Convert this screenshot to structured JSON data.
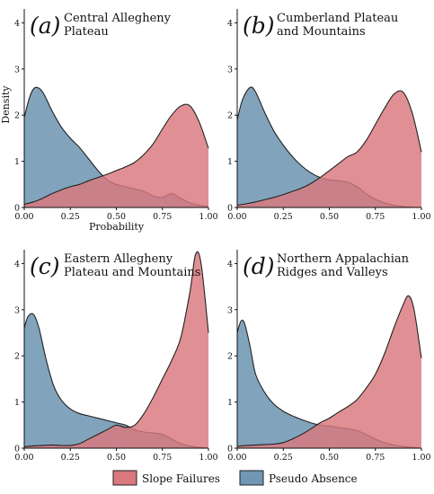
{
  "colors": {
    "slope_failures": "#d9787d",
    "pseudo_absence": "#6f97b3",
    "outline": "#222222",
    "axis": "#111111"
  },
  "legend": {
    "slope_failures_label": "Slope Failures",
    "pseudo_absence_label": "Pseudo Absence"
  },
  "chart_data": [
    {
      "type": "area",
      "panel_letter": "(a)",
      "title_lines": [
        "Central Allegheny",
        "Plateau"
      ],
      "xlabel": "Probability",
      "ylabel": "Density",
      "xlim": [
        0,
        1
      ],
      "ylim": [
        0,
        4.3
      ],
      "x_ticks": [
        "0.00",
        "0.25",
        "0.50",
        "0.75",
        "1.00"
      ],
      "y_ticks": [
        "0",
        "1",
        "2",
        "3",
        "4"
      ],
      "series": [
        {
          "name": "Pseudo Absence",
          "x": [
            0,
            0.03,
            0.06,
            0.1,
            0.15,
            0.2,
            0.25,
            0.3,
            0.35,
            0.4,
            0.45,
            0.5,
            0.55,
            0.6,
            0.65,
            0.7,
            0.75,
            0.8,
            0.85,
            0.9,
            0.95,
            1.0
          ],
          "values": [
            1.95,
            2.4,
            2.6,
            2.5,
            2.1,
            1.75,
            1.5,
            1.3,
            1.05,
            0.8,
            0.6,
            0.5,
            0.45,
            0.4,
            0.35,
            0.25,
            0.22,
            0.3,
            0.2,
            0.1,
            0.05,
            0.02
          ]
        },
        {
          "name": "Slope Failures",
          "x": [
            0,
            0.05,
            0.1,
            0.15,
            0.2,
            0.25,
            0.3,
            0.35,
            0.4,
            0.45,
            0.5,
            0.55,
            0.6,
            0.65,
            0.7,
            0.75,
            0.8,
            0.85,
            0.9,
            0.95,
            1.0
          ],
          "values": [
            0.07,
            0.12,
            0.2,
            0.3,
            0.38,
            0.45,
            0.5,
            0.58,
            0.65,
            0.72,
            0.8,
            0.88,
            0.98,
            1.15,
            1.38,
            1.7,
            2.0,
            2.2,
            2.2,
            1.85,
            1.28
          ]
        }
      ]
    },
    {
      "type": "area",
      "panel_letter": "(b)",
      "title_lines": [
        "Cumberland Plateau",
        "and Mountains"
      ],
      "xlim": [
        0,
        1
      ],
      "ylim": [
        0,
        4.3
      ],
      "x_ticks": [
        "0.00",
        "0.25",
        "0.50",
        "0.75",
        "1.00"
      ],
      "y_ticks": [
        "0",
        "1",
        "2",
        "3",
        "4"
      ],
      "series": [
        {
          "name": "Pseudo Absence",
          "x": [
            0,
            0.03,
            0.07,
            0.1,
            0.15,
            0.2,
            0.25,
            0.3,
            0.35,
            0.4,
            0.45,
            0.5,
            0.55,
            0.6,
            0.65,
            0.7,
            0.75,
            0.8,
            0.85,
            0.9,
            0.95,
            1.0
          ],
          "values": [
            1.9,
            2.35,
            2.6,
            2.5,
            2.05,
            1.65,
            1.35,
            1.1,
            0.9,
            0.75,
            0.65,
            0.6,
            0.58,
            0.55,
            0.45,
            0.3,
            0.18,
            0.1,
            0.05,
            0.02,
            0.01,
            0.0
          ]
        },
        {
          "name": "Slope Failures",
          "x": [
            0,
            0.05,
            0.1,
            0.15,
            0.2,
            0.25,
            0.3,
            0.35,
            0.4,
            0.45,
            0.5,
            0.55,
            0.6,
            0.65,
            0.7,
            0.75,
            0.8,
            0.85,
            0.9,
            0.95,
            1.0
          ],
          "values": [
            0.05,
            0.08,
            0.12,
            0.17,
            0.22,
            0.28,
            0.35,
            0.42,
            0.52,
            0.65,
            0.8,
            0.95,
            1.1,
            1.2,
            1.45,
            1.8,
            2.15,
            2.45,
            2.5,
            2.05,
            1.2
          ]
        }
      ]
    },
    {
      "type": "area",
      "panel_letter": "(c)",
      "title_lines": [
        "Eastern Allegheny",
        "Plateau and Mountains"
      ],
      "xlim": [
        0,
        1
      ],
      "ylim": [
        0,
        4.3
      ],
      "x_ticks": [
        "0.00",
        "0.25",
        "0.50",
        "0.75",
        "1.00"
      ],
      "y_ticks": [
        "0",
        "1",
        "2",
        "3",
        "4"
      ],
      "series": [
        {
          "name": "Pseudo Absence",
          "x": [
            0,
            0.02,
            0.05,
            0.08,
            0.12,
            0.16,
            0.2,
            0.25,
            0.3,
            0.35,
            0.4,
            0.45,
            0.5,
            0.55,
            0.6,
            0.65,
            0.7,
            0.75,
            0.8,
            0.85,
            0.9,
            0.95,
            1.0
          ],
          "values": [
            2.6,
            2.85,
            2.9,
            2.6,
            1.9,
            1.35,
            1.05,
            0.85,
            0.75,
            0.7,
            0.65,
            0.6,
            0.55,
            0.5,
            0.4,
            0.35,
            0.33,
            0.3,
            0.2,
            0.1,
            0.05,
            0.02,
            0.0
          ]
        },
        {
          "name": "Slope Failures",
          "x": [
            0,
            0.05,
            0.1,
            0.15,
            0.2,
            0.25,
            0.3,
            0.35,
            0.4,
            0.45,
            0.5,
            0.55,
            0.6,
            0.65,
            0.7,
            0.75,
            0.8,
            0.85,
            0.9,
            0.93,
            0.96,
            1.0
          ],
          "values": [
            0.03,
            0.05,
            0.06,
            0.07,
            0.06,
            0.06,
            0.1,
            0.2,
            0.3,
            0.4,
            0.5,
            0.45,
            0.5,
            0.75,
            1.1,
            1.5,
            1.9,
            2.4,
            3.4,
            4.2,
            4.0,
            2.5
          ]
        }
      ]
    },
    {
      "type": "area",
      "panel_letter": "(d)",
      "title_lines": [
        "Northern Appalachian",
        "Ridges and Valleys"
      ],
      "xlim": [
        0,
        1
      ],
      "ylim": [
        0,
        4.3
      ],
      "x_ticks": [
        "0.00",
        "0.25",
        "0.50",
        "0.75",
        "1.00"
      ],
      "y_ticks": [
        "0",
        "1",
        "2",
        "3",
        "4"
      ],
      "series": [
        {
          "name": "Pseudo Absence",
          "x": [
            0,
            0.02,
            0.04,
            0.07,
            0.1,
            0.15,
            0.2,
            0.25,
            0.3,
            0.35,
            0.4,
            0.45,
            0.5,
            0.55,
            0.6,
            0.65,
            0.7,
            0.75,
            0.8,
            0.85,
            0.9,
            0.95,
            1.0
          ],
          "values": [
            2.5,
            2.75,
            2.7,
            2.2,
            1.6,
            1.2,
            0.95,
            0.8,
            0.7,
            0.62,
            0.55,
            0.5,
            0.48,
            0.45,
            0.42,
            0.38,
            0.3,
            0.2,
            0.12,
            0.07,
            0.04,
            0.02,
            0.0
          ]
        },
        {
          "name": "Slope Failures",
          "x": [
            0,
            0.05,
            0.1,
            0.15,
            0.2,
            0.25,
            0.3,
            0.35,
            0.4,
            0.45,
            0.5,
            0.55,
            0.6,
            0.65,
            0.7,
            0.75,
            0.8,
            0.85,
            0.9,
            0.93,
            0.96,
            1.0
          ],
          "values": [
            0.04,
            0.06,
            0.07,
            0.08,
            0.09,
            0.12,
            0.2,
            0.3,
            0.42,
            0.55,
            0.65,
            0.78,
            0.9,
            1.05,
            1.3,
            1.6,
            2.05,
            2.6,
            3.1,
            3.3,
            3.0,
            1.95
          ]
        }
      ]
    }
  ]
}
